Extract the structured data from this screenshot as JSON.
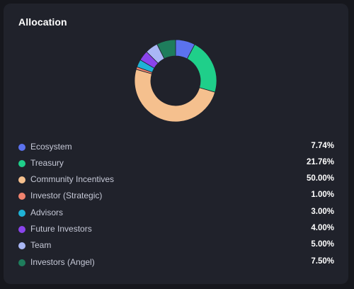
{
  "card": {
    "title": "Allocation"
  },
  "chart_data": {
    "type": "pie",
    "categories": [
      "Ecosystem",
      "Treasury",
      "Community Incentives",
      "Investor (Strategic)",
      "Advisors",
      "Future Investors",
      "Team",
      "Investors (Angel)"
    ],
    "values": [
      7.74,
      21.76,
      50.0,
      1.0,
      3.0,
      4.0,
      5.0,
      7.5
    ],
    "colors": [
      "#5b72ee",
      "#1fcf8a",
      "#f5c08e",
      "#f0836e",
      "#1fb3d6",
      "#8a44ec",
      "#a9b7f5",
      "#1e7d5c"
    ],
    "legend_placement": "bottom"
  },
  "legend": [
    {
      "label": "Ecosystem",
      "value": "7.74%",
      "color": "#5b72ee"
    },
    {
      "label": "Treasury",
      "value": "21.76%",
      "color": "#1fcf8a"
    },
    {
      "label": "Community Incentives",
      "value": "50.00%",
      "color": "#f5c08e"
    },
    {
      "label": "Investor (Strategic)",
      "value": "1.00%",
      "color": "#f0836e"
    },
    {
      "label": "Advisors",
      "value": "3.00%",
      "color": "#1fb3d6"
    },
    {
      "label": "Future Investors",
      "value": "4.00%",
      "color": "#8a44ec"
    },
    {
      "label": "Team",
      "value": "5.00%",
      "color": "#a9b7f5"
    },
    {
      "label": "Investors (Angel)",
      "value": "7.50%",
      "color": "#1e7d5c"
    }
  ]
}
